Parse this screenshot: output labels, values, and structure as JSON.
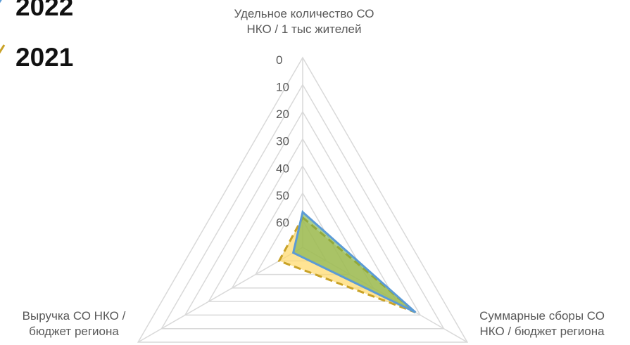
{
  "chart_data": {
    "type": "radar",
    "axes": [
      {
        "lines": [
          "Удельное количество СО",
          "НКО / 1 тыс жителей"
        ]
      },
      {
        "lines": [
          "Суммарные сборы СО",
          "НКО / бюджет региона"
        ]
      },
      {
        "lines": [
          "Выручка СО НКО /",
          "бюджет региона"
        ]
      }
    ],
    "ticks": [
      0,
      10,
      20,
      30,
      40,
      50,
      60
    ],
    "scale": "inverted",
    "range": [
      0,
      70
    ],
    "grid": true,
    "legend_position": "top-left",
    "series": [
      {
        "name": "2022",
        "values": [
          57,
          22,
          66
        ],
        "color": "#5B9BD5",
        "fill": "#70AD47"
      },
      {
        "name": "2021",
        "values": [
          59,
          22,
          60
        ],
        "color": "#C9A227",
        "fill": "#FFD966"
      }
    ]
  }
}
